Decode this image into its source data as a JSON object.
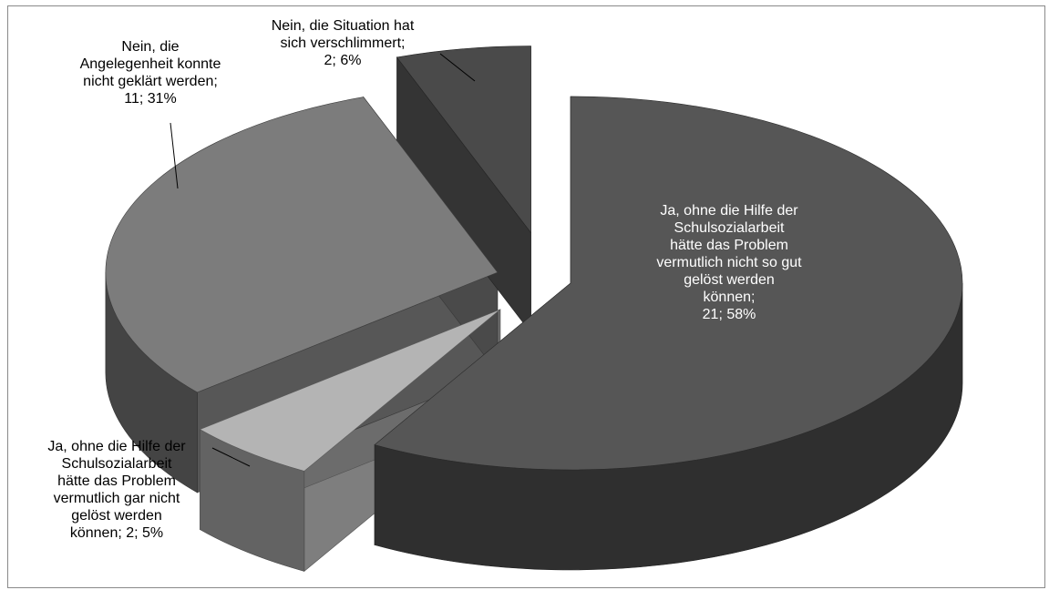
{
  "chart_data": {
    "type": "pie",
    "title": "",
    "style": "3d-exploded",
    "slices": [
      {
        "label": "Ja, ohne die Hilfe der\nSchulsozialarbeit\nhätte das Problem\nvermutlich nicht so gut\ngelöst werden\nkönnen;\n21; 58%",
        "category": "Ja, ohne die Hilfe der Schulsozialarbeit hätte das Problem vermutlich nicht so gut gelöst werden können",
        "value": 21,
        "percent": 58,
        "color": "#565656"
      },
      {
        "label": "Ja, ohne die Hilfe der\nSchulsozialarbeit\nhätte das Problem\nvermutlich gar nicht\ngelöst werden\nkönnen; 2; 5%",
        "category": "Ja, ohne die Hilfe der Schulsozialarbeit hätte das Problem vermutlich gar nicht gelöst werden können",
        "value": 2,
        "percent": 5,
        "color": "#b4b4b4"
      },
      {
        "label": "Nein, die\nAngelegenheit konnte\nnicht geklärt werden;\n11; 31%",
        "category": "Nein, die Angelegenheit konnte nicht geklärt werden",
        "value": 11,
        "percent": 31,
        "color": "#7c7c7c"
      },
      {
        "label": "Nein, die Situation hat\nsich verschlimmert;\n2; 6%",
        "category": "Nein, die Situation hat sich verschlimmert",
        "value": 2,
        "percent": 6,
        "color": "#4a4a4a"
      }
    ]
  }
}
